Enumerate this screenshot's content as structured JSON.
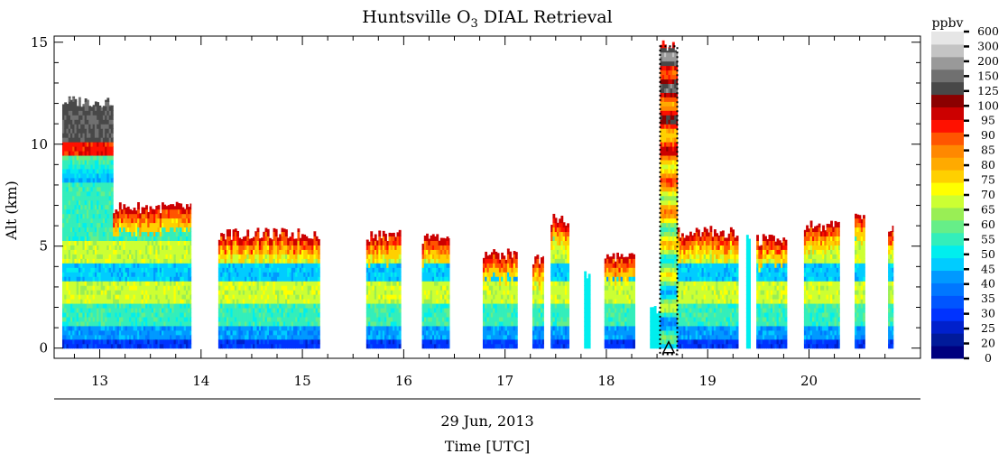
{
  "chart_data": {
    "type": "heatmap",
    "title_main": "Huntsville O",
    "title_sub": "3",
    "title_rest": " DIAL Retrieval",
    "ylabel": "Alt (km)",
    "xlabel_date": "29 Jun, 2013",
    "xlabel": "Time [UTC]",
    "xlim": [
      12.55,
      21.1
    ],
    "ylim": [
      -0.5,
      15.3
    ],
    "x_ticks": [
      "13",
      "14",
      "15",
      "16",
      "17",
      "18",
      "19",
      "20"
    ],
    "y_ticks": [
      "0",
      "5",
      "10",
      "15"
    ],
    "colorbar": {
      "title": "ppbv",
      "levels": [
        "0",
        "20",
        "25",
        "30",
        "35",
        "40",
        "45",
        "50",
        "55",
        "60",
        "65",
        "70",
        "75",
        "80",
        "85",
        "90",
        "95",
        "100",
        "125",
        "150",
        "200",
        "300",
        "600"
      ],
      "colors": [
        "#00007f",
        "#001a9a",
        "#0020cc",
        "#0033ff",
        "#0055ff",
        "#0077ff",
        "#0099ff",
        "#00ccff",
        "#00eeee",
        "#33eebb",
        "#66ee88",
        "#99ee55",
        "#ccff33",
        "#ffff00",
        "#ffd000",
        "#ffaa00",
        "#ff8800",
        "#ff5500",
        "#ff1100",
        "#cc0000",
        "#8b0000",
        "#484848",
        "#707070",
        "#999999",
        "#c4c4c4",
        "#e6e6e6"
      ]
    },
    "segments": [
      {
        "t0": 12.63,
        "t1": 13.13,
        "top": 12.1,
        "profile": "deep",
        "cloud": true
      },
      {
        "t0": 13.13,
        "t1": 13.9,
        "top": 6.9,
        "profile": "mid"
      },
      {
        "t0": 14.17,
        "t1": 15.17,
        "top": 5.6,
        "profile": "mid"
      },
      {
        "t0": 15.63,
        "t1": 15.97,
        "top": 5.5,
        "profile": "shallow"
      },
      {
        "t0": 16.18,
        "t1": 16.45,
        "top": 5.4,
        "profile": "shallow"
      },
      {
        "t0": 16.78,
        "t1": 17.12,
        "top": 4.6,
        "profile": "shallow"
      },
      {
        "t0": 17.27,
        "t1": 17.38,
        "top": 4.4,
        "profile": "shallow"
      },
      {
        "t0": 17.45,
        "t1": 17.63,
        "top": 6.3,
        "profile": "shallow"
      },
      {
        "t0": 17.78,
        "t1": 17.84,
        "top": 3.6,
        "profile": "low"
      },
      {
        "t0": 17.98,
        "t1": 18.28,
        "top": 4.5,
        "profile": "shallow"
      },
      {
        "t0": 18.43,
        "t1": 18.53,
        "top": 1.9,
        "profile": "low"
      },
      {
        "t0": 18.53,
        "t1": 18.7,
        "top": 14.8,
        "profile": "column"
      },
      {
        "t0": 18.7,
        "t1": 19.3,
        "top": 5.7,
        "profile": "mid"
      },
      {
        "t0": 19.38,
        "t1": 19.42,
        "top": 5.5,
        "profile": "low"
      },
      {
        "t0": 19.48,
        "t1": 19.78,
        "top": 5.3,
        "profile": "shallow"
      },
      {
        "t0": 19.95,
        "t1": 20.3,
        "top": 6.0,
        "profile": "shallow"
      },
      {
        "t0": 20.45,
        "t1": 20.55,
        "top": 6.4,
        "profile": "shallow"
      },
      {
        "t0": 20.78,
        "t1": 20.83,
        "top": 5.8,
        "profile": "shallow"
      }
    ],
    "marker": {
      "t0": 18.53,
      "t1": 18.7,
      "symbol": "triangle"
    }
  }
}
